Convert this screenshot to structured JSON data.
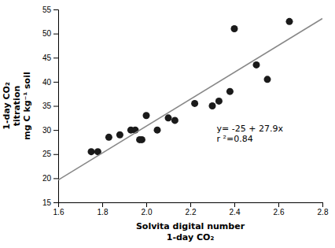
{
  "chart_data": {
    "type": "scatter",
    "xlabel": "Solvita digital number\n1-day CO₂",
    "ylabel": "1-day CO₂\ntitration\nmg C kg⁻¹ soil",
    "xlim": [
      1.6,
      2.8
    ],
    "ylim": [
      15,
      55
    ],
    "xticks": [
      1.6,
      1.8,
      {
        "value": 2.0,
        "label": "2.0"
      },
      2.2,
      2.4,
      2.6,
      2.8
    ],
    "yticks": [
      15,
      20,
      25,
      30,
      35,
      40,
      45,
      50,
      55
    ],
    "series": [
      {
        "type": "scatter",
        "color": "#1a1a1a",
        "x": [
          1.75,
          1.78,
          1.83,
          1.88,
          1.93,
          1.95,
          1.97,
          1.98,
          2.0,
          2.05,
          2.1,
          2.13,
          2.22,
          2.3,
          2.33,
          2.38,
          2.4,
          2.5,
          2.55,
          2.65
        ],
        "values": [
          25.5,
          25.5,
          28.5,
          29.0,
          30.0,
          30.0,
          28.0,
          28.0,
          33.0,
          30.0,
          32.5,
          32.0,
          35.5,
          35.0,
          36.0,
          38.0,
          51.0,
          43.5,
          40.5,
          52.5
        ]
      },
      {
        "type": "line",
        "color": "#888888",
        "x": [
          1.6,
          2.8
        ],
        "values": [
          19.64,
          53.12
        ]
      }
    ],
    "annotations": [
      {
        "text": "y= -25 + 27.9x\nr ²=0.84",
        "x": 2.32,
        "y": 27.5
      }
    ]
  }
}
